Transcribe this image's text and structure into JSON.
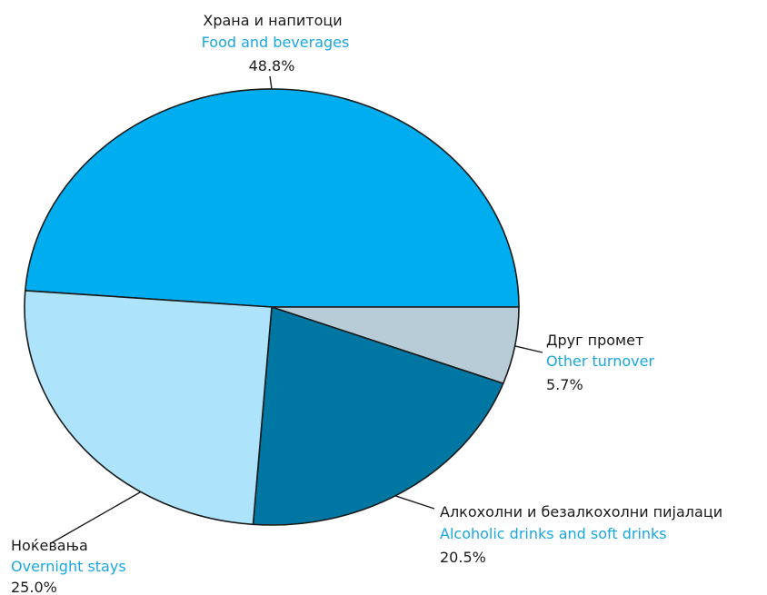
{
  "chart_data": {
    "type": "pie",
    "title": "",
    "slices": [
      {
        "label_mk": "Храна и напитоци",
        "label_en": "Food and beverages",
        "value": 48.8,
        "value_label": "48.8%",
        "color": "#00aeef"
      },
      {
        "label_mk": "Друг промет",
        "label_en": "Other turnover",
        "value": 5.7,
        "value_label": "5.7%",
        "color": "#b7ccd6"
      },
      {
        "label_mk": "Алкохолни и безалкохолни пијалаци",
        "label_en": "Alcoholic drinks and soft drinks",
        "value": 20.5,
        "value_label": "20.5%",
        "color": "#0077a3"
      },
      {
        "label_mk": "Ноќевања",
        "label_en": "Overnight stays",
        "value": 25.0,
        "value_label": "25.0%",
        "color": "#ade3fb"
      }
    ]
  }
}
